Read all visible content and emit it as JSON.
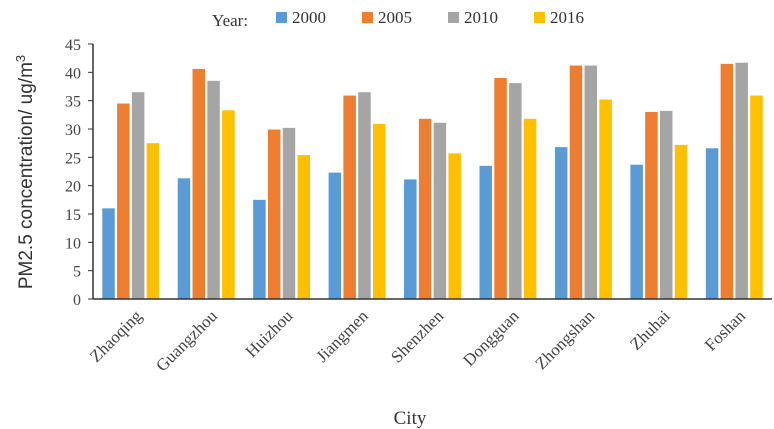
{
  "chart_data": {
    "type": "bar",
    "xlabel": "City",
    "ylabel": "PM2.5 concentration/ ug/m",
    "ylabel_sup": "3",
    "ylim": [
      0,
      45
    ],
    "yticks": [
      0,
      5,
      10,
      15,
      20,
      25,
      30,
      35,
      40,
      45
    ],
    "grid": false,
    "legend_title": "Year:",
    "legend_position": "top",
    "categories": [
      "Zhaoqing",
      "Guangzhou",
      "Huizhou",
      "Jiangmen",
      "Shenzhen",
      "Dongguan",
      "Zhongshan",
      "Zhuhai",
      "Foshan"
    ],
    "series": [
      {
        "name": "2000",
        "color": "#5B9BD5",
        "values": [
          16.0,
          21.3,
          17.5,
          22.3,
          21.1,
          23.5,
          26.8,
          23.7,
          26.6
        ]
      },
      {
        "name": "2005",
        "color": "#ED7D31",
        "values": [
          34.5,
          40.6,
          29.9,
          35.9,
          31.8,
          39.0,
          41.2,
          33.0,
          41.5
        ]
      },
      {
        "name": "2010",
        "color": "#A5A5A5",
        "values": [
          36.5,
          38.5,
          30.2,
          36.5,
          31.1,
          38.1,
          41.2,
          33.2,
          41.7
        ]
      },
      {
        "name": "2016",
        "color": "#FFC000",
        "values": [
          27.5,
          33.3,
          25.4,
          30.9,
          25.7,
          31.8,
          35.2,
          27.2,
          35.9
        ]
      }
    ]
  }
}
